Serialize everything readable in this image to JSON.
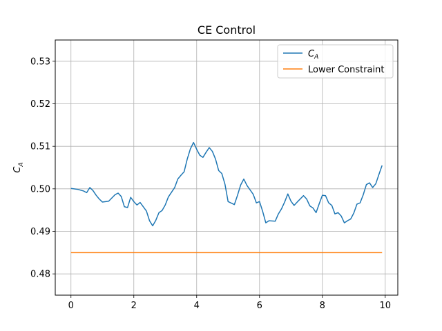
{
  "chart_data": {
    "type": "line",
    "title": "CE Control",
    "xlabel": "",
    "ylabel": "C_A",
    "xlim": [
      -0.5,
      10.4
    ],
    "ylim": [
      0.475,
      0.535
    ],
    "grid": true,
    "legend_placement": "top-right",
    "x_ticks": [
      0,
      2,
      4,
      6,
      8,
      10
    ],
    "x_tick_labels": [
      "0",
      "2",
      "4",
      "6",
      "8",
      "10"
    ],
    "y_ticks": [
      0.48,
      0.49,
      0.5,
      0.51,
      0.52,
      0.53
    ],
    "y_tick_labels": [
      "0.48",
      "0.49",
      "0.50",
      "0.51",
      "0.52",
      "0.53"
    ],
    "series": [
      {
        "name": "C_A",
        "color": "#1f77b4",
        "points": [
          [
            0.0,
            0.5001
          ],
          [
            0.2,
            0.4999
          ],
          [
            0.4,
            0.4995
          ],
          [
            0.5,
            0.4991
          ],
          [
            0.6,
            0.5003
          ],
          [
            0.7,
            0.4996
          ],
          [
            0.8,
            0.4985
          ],
          [
            0.9,
            0.4976
          ],
          [
            1.0,
            0.4969
          ],
          [
            1.2,
            0.4971
          ],
          [
            1.4,
            0.4986
          ],
          [
            1.5,
            0.499
          ],
          [
            1.6,
            0.4982
          ],
          [
            1.7,
            0.4958
          ],
          [
            1.8,
            0.4956
          ],
          [
            1.9,
            0.498
          ],
          [
            2.0,
            0.497
          ],
          [
            2.1,
            0.4962
          ],
          [
            2.2,
            0.4968
          ],
          [
            2.4,
            0.4948
          ],
          [
            2.5,
            0.4925
          ],
          [
            2.6,
            0.4913
          ],
          [
            2.7,
            0.4926
          ],
          [
            2.8,
            0.4944
          ],
          [
            2.9,
            0.4949
          ],
          [
            3.0,
            0.4962
          ],
          [
            3.1,
            0.4981
          ],
          [
            3.3,
            0.5003
          ],
          [
            3.4,
            0.5023
          ],
          [
            3.5,
            0.5032
          ],
          [
            3.6,
            0.504
          ],
          [
            3.7,
            0.507
          ],
          [
            3.8,
            0.5094
          ],
          [
            3.9,
            0.5109
          ],
          [
            4.0,
            0.5093
          ],
          [
            4.1,
            0.5079
          ],
          [
            4.2,
            0.5074
          ],
          [
            4.3,
            0.5086
          ],
          [
            4.4,
            0.5097
          ],
          [
            4.5,
            0.5088
          ],
          [
            4.6,
            0.507
          ],
          [
            4.7,
            0.5043
          ],
          [
            4.8,
            0.5036
          ],
          [
            4.9,
            0.5011
          ],
          [
            5.0,
            0.497
          ],
          [
            5.2,
            0.4963
          ],
          [
            5.3,
            0.4985
          ],
          [
            5.4,
            0.5009
          ],
          [
            5.5,
            0.5023
          ],
          [
            5.6,
            0.5008
          ],
          [
            5.8,
            0.4987
          ],
          [
            5.9,
            0.4967
          ],
          [
            6.0,
            0.497
          ],
          [
            6.1,
            0.4947
          ],
          [
            6.2,
            0.492
          ],
          [
            6.3,
            0.4925
          ],
          [
            6.5,
            0.4924
          ],
          [
            6.6,
            0.4941
          ],
          [
            6.7,
            0.4953
          ],
          [
            6.8,
            0.4969
          ],
          [
            6.9,
            0.4988
          ],
          [
            7.0,
            0.4971
          ],
          [
            7.1,
            0.4961
          ],
          [
            7.2,
            0.4969
          ],
          [
            7.4,
            0.4984
          ],
          [
            7.5,
            0.4976
          ],
          [
            7.6,
            0.496
          ],
          [
            7.7,
            0.4955
          ],
          [
            7.8,
            0.4944
          ],
          [
            7.9,
            0.4965
          ],
          [
            8.0,
            0.4985
          ],
          [
            8.1,
            0.4984
          ],
          [
            8.2,
            0.4967
          ],
          [
            8.3,
            0.4961
          ],
          [
            8.4,
            0.4941
          ],
          [
            8.5,
            0.4944
          ],
          [
            8.6,
            0.4936
          ],
          [
            8.7,
            0.492
          ],
          [
            8.8,
            0.4925
          ],
          [
            8.9,
            0.4929
          ],
          [
            9.0,
            0.4943
          ],
          [
            9.1,
            0.4964
          ],
          [
            9.2,
            0.4967
          ],
          [
            9.3,
            0.4986
          ],
          [
            9.4,
            0.501
          ],
          [
            9.5,
            0.5014
          ],
          [
            9.6,
            0.5003
          ],
          [
            9.7,
            0.5012
          ],
          [
            9.8,
            0.5034
          ],
          [
            9.9,
            0.5055
          ]
        ]
      },
      {
        "name": "Lower Constraint",
        "color": "#ff7f0e",
        "points": [
          [
            0.0,
            0.485
          ],
          [
            9.9,
            0.485
          ]
        ]
      }
    ]
  }
}
